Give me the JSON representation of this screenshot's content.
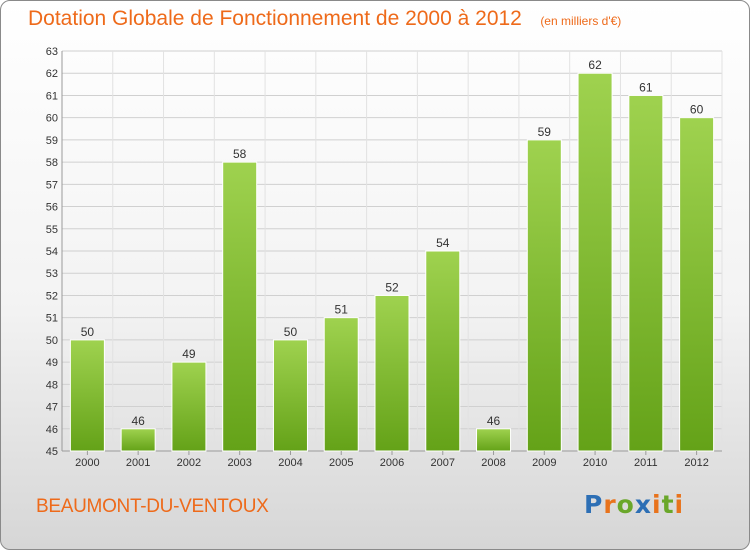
{
  "title": "Dotation Globale de Fonctionnement de 2000 à 2012",
  "subtitle": "(en milliers d'€)",
  "commune": "BEAUMONT-DU-VENTOUX",
  "logo": {
    "letters": [
      "P",
      "r",
      "o",
      "x",
      "i",
      "t",
      "i"
    ],
    "colors": [
      "#2d6fb5",
      "#e8731c",
      "#6aa72a",
      "#2d6fb5",
      "#e8731c",
      "#6aa72a",
      "#e8731c"
    ]
  },
  "colors": {
    "bar_light": "#9fd24f",
    "bar_dark": "#64a218",
    "title": "#ee6a1a"
  },
  "chart_data": {
    "type": "bar",
    "categories": [
      "2000",
      "2001",
      "2002",
      "2003",
      "2004",
      "2005",
      "2006",
      "2007",
      "2008",
      "2009",
      "2010",
      "2011",
      "2012"
    ],
    "values": [
      50,
      46,
      49,
      58,
      50,
      51,
      52,
      54,
      46,
      59,
      62,
      61,
      60
    ],
    "title": "Dotation Globale de Fonctionnement de 2000 à 2012",
    "subtitle": "(en milliers d'€)",
    "xlabel": "",
    "ylabel": "",
    "ylim": [
      45,
      63
    ],
    "yticks": [
      45,
      46,
      47,
      48,
      49,
      50,
      51,
      52,
      53,
      54,
      55,
      56,
      57,
      58,
      59,
      60,
      61,
      62,
      63
    ],
    "grid": true,
    "legend": "none"
  }
}
